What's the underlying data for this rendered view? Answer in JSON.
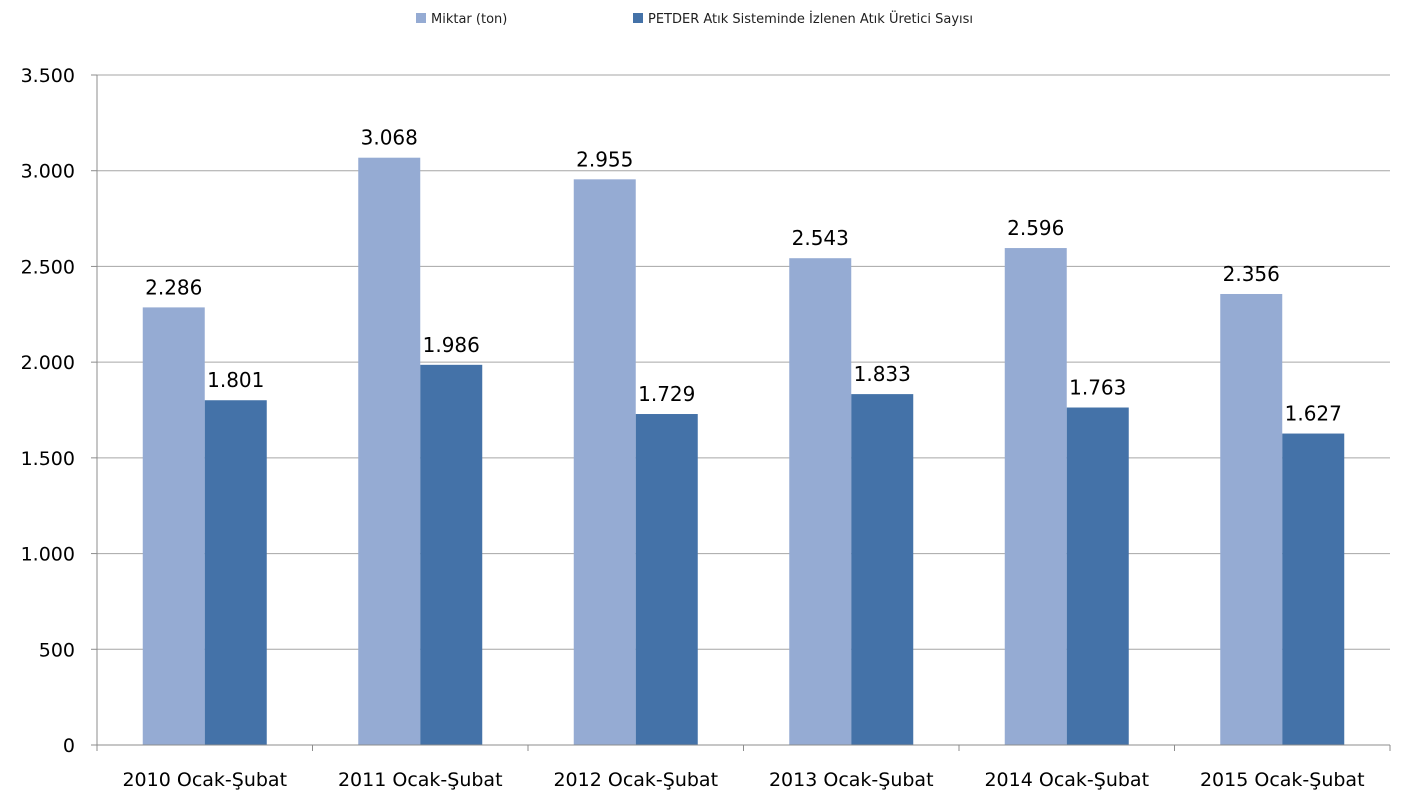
{
  "chart_data": {
    "type": "bar",
    "categories": [
      "2010 Ocak-Şubat",
      "2011 Ocak-Şubat",
      "2012 Ocak-Şubat",
      "2013 Ocak-Şubat",
      "2014 Ocak-Şubat",
      "2015 Ocak-Şubat"
    ],
    "series": [
      {
        "name": "Miktar (ton)",
        "values": [
          2286,
          3068,
          2955,
          2543,
          2596,
          2356
        ],
        "labels": [
          "2.286",
          "3.068",
          "2.955",
          "2.543",
          "2.596",
          "2.356"
        ],
        "color": "#95abd3"
      },
      {
        "name": "PETDER Atık Sisteminde İzlenen Atık Üretici Sayısı",
        "values": [
          1801,
          1986,
          1729,
          1833,
          1763,
          1627
        ],
        "labels": [
          "1.801",
          "1.986",
          "1.729",
          "1.833",
          "1.763",
          "1.627"
        ],
        "color": "#4472a8"
      }
    ],
    "ylim": [
      0,
      3500
    ],
    "yticks": [
      0,
      500,
      1000,
      1500,
      2000,
      2500,
      3000,
      3500
    ],
    "ytick_labels": [
      "0",
      "500",
      "1.000",
      "1.500",
      "2.000",
      "2.500",
      "3.000",
      "3.500"
    ],
    "grid": true,
    "legend_position": "top-center"
  }
}
